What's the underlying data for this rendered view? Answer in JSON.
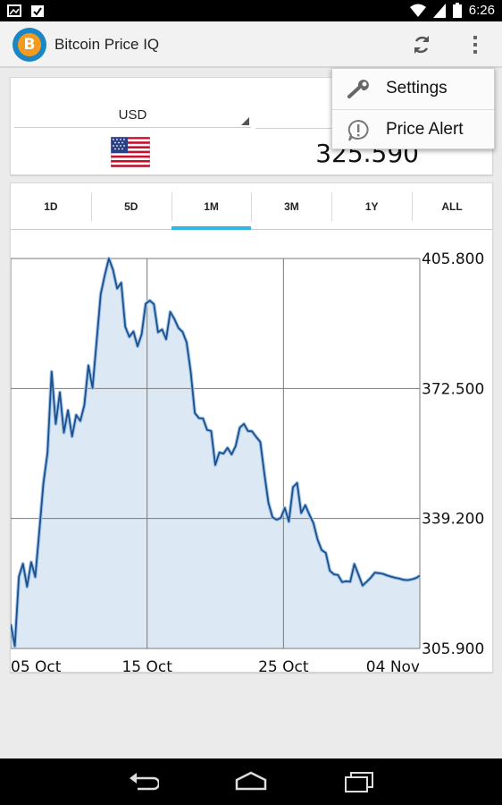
{
  "status_bar": {
    "time": "6:26",
    "icons": [
      "image-icon",
      "checkbox-icon",
      "wifi-icon",
      "signal-icon",
      "battery-icon"
    ]
  },
  "action_bar": {
    "title": "Bitcoin Price IQ",
    "logo_letter": "B",
    "icons": [
      "bitcoin-logo-icon",
      "refresh-icon",
      "overflow-menu-icon"
    ]
  },
  "currency": {
    "code": "USD",
    "price": "325.590",
    "flag": "us-flag-icon"
  },
  "tabs": [
    "1D",
    "5D",
    "1M",
    "3M",
    "1Y",
    "ALL"
  ],
  "active_tab": "1M",
  "menu": {
    "items": [
      {
        "label": "Settings",
        "icon": "wrench-icon"
      },
      {
        "label": "Price Alert",
        "icon": "alert-bubble-icon"
      }
    ]
  },
  "colors": {
    "accent": "#33b5e5",
    "line": "#1f4f8a",
    "area_fill": "#dce9f5",
    "bitcoin_orange": "#f39a1f"
  },
  "chart_data": {
    "type": "area",
    "title": "",
    "xlabel": "",
    "ylabel": "",
    "x_ticks": [
      "05 Oct",
      "15 Oct",
      "25 Oct",
      "04 Nov"
    ],
    "y_ticks": [
      "405.800",
      "372.500",
      "339.200",
      "305.900"
    ],
    "ylim": [
      305.9,
      405.8
    ],
    "xlim": [
      0,
      30
    ],
    "grid": true,
    "y_axis_position": "right",
    "x": [
      0,
      0.3,
      0.6,
      0.9,
      1.2,
      1.5,
      1.8,
      2.1,
      2.4,
      2.7,
      3.0,
      3.3,
      3.6,
      3.9,
      4.2,
      4.5,
      4.8,
      5.1,
      5.4,
      5.7,
      6.0,
      6.3,
      6.6,
      6.9,
      7.2,
      7.5,
      7.8,
      8.1,
      8.4,
      8.7,
      9.0,
      9.3,
      9.6,
      9.9,
      10.2,
      10.5,
      10.8,
      11.1,
      11.4,
      11.7,
      12.0,
      12.3,
      12.6,
      12.9,
      13.2,
      13.5,
      13.8,
      14.1,
      14.4,
      14.7,
      15.0,
      15.3,
      15.6,
      15.9,
      16.2,
      16.5,
      16.8,
      17.1,
      17.4,
      17.7,
      18.0,
      18.3,
      18.6,
      18.9,
      19.2,
      19.5,
      19.8,
      20.1,
      20.4,
      20.7,
      21.0,
      21.3,
      21.6,
      21.9,
      22.2,
      22.5,
      22.8,
      23.1,
      23.4,
      23.7,
      24.0,
      24.3,
      24.6,
      24.9,
      25.2,
      25.5,
      25.8,
      26.1,
      26.4,
      26.7,
      27.0,
      27.3,
      27.6,
      27.9,
      28.2,
      28.5,
      28.8,
      29.1,
      29.4,
      29.7,
      30.0
    ],
    "series": [
      {
        "values": [
          312.1,
          306.5,
          324.3,
          327.6,
          321.7,
          328.0,
          324.2,
          336.1,
          348.2,
          356.0,
          376.8,
          363.4,
          371.5,
          361.2,
          366.9,
          360.2,
          365.7,
          364.2,
          368.2,
          378.4,
          372.6,
          384.6,
          396.7,
          401.5,
          405.8,
          402.9,
          398.1,
          399.6,
          388.3,
          385.7,
          387.1,
          383.3,
          386.4,
          394.2,
          395.0,
          394.1,
          386.9,
          387.6,
          385.1,
          392.1,
          390.3,
          388.0,
          387.0,
          384.3,
          376.8,
          366.2,
          364.9,
          364.8,
          361.9,
          361.6,
          352.9,
          356.1,
          355.8,
          357.3,
          355.6,
          357.8,
          362.5,
          363.4,
          361.6,
          361.5,
          360.1,
          358.8,
          350.6,
          343.2,
          339.5,
          338.9,
          339.3,
          341.9,
          338.4,
          347.2,
          348.3,
          340.6,
          342.6,
          340.2,
          338.0,
          333.8,
          331.1,
          330.4,
          325.8,
          324.9,
          324.7,
          322.9,
          323.1,
          323.0,
          327.5,
          324.8,
          322.0,
          323.0,
          324.0,
          325.3,
          325.2,
          325.0,
          324.6,
          324.3,
          324.0,
          323.8,
          323.5,
          323.4,
          323.6,
          323.9,
          324.5
        ]
      }
    ]
  }
}
